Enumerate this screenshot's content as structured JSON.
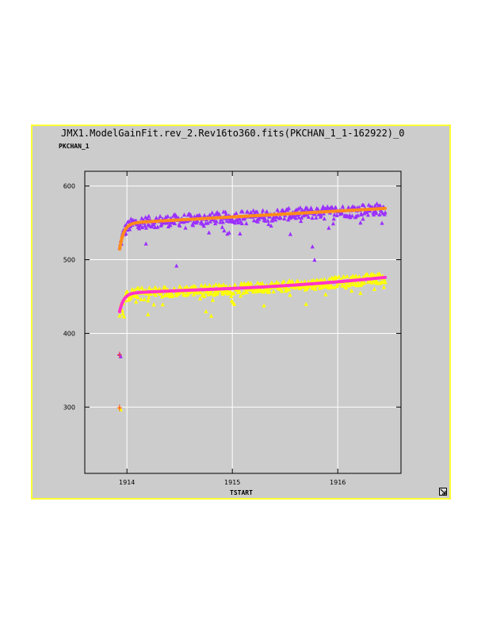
{
  "window": {
    "title": "JMX1.ModelGainFit.rev_2.Rev16to360.fits(PKCHAN_1_1-162922)_0"
  },
  "chart_data": {
    "type": "scatter",
    "title": "JMX1.ModelGainFit.rev_2.Rev16to360.fits(PKCHAN_1_1-162922)_0",
    "xlabel": "TSTART",
    "ylabel": "PKCHAN_1",
    "xlim": [
      1913.6,
      1916.6
    ],
    "ylim": [
      210,
      620
    ],
    "xticks": [
      1914,
      1915,
      1916
    ],
    "yticks": [
      300,
      400,
      500,
      600
    ],
    "grid": true,
    "series": [
      {
        "kind": "points",
        "color": "#9b30ff",
        "marker": "triangle",
        "model": {
          "base": 550,
          "slope": 8,
          "amp": 35,
          "tau": 0.04,
          "t0": 1913.93
        },
        "x_range": [
          1913.93,
          1916.45
        ],
        "spread": 8,
        "outliers": [
          {
            "x": 1914.47,
            "y": 492
          },
          {
            "x": 1915.78,
            "y": 500
          },
          {
            "x": 1914.18,
            "y": 522
          },
          {
            "x": 1915.76,
            "y": 518
          },
          {
            "x": 1914.97,
            "y": 537
          },
          {
            "x": 1915.55,
            "y": 535
          },
          {
            "x": 1913.93,
            "y": 372
          },
          {
            "x": 1913.94,
            "y": 369
          }
        ]
      },
      {
        "kind": "line",
        "color": "#ff8c1a",
        "model": {
          "base": 550,
          "slope": 8,
          "amp": 35,
          "tau": 0.04,
          "t0": 1913.93
        },
        "x_range": [
          1913.93,
          1916.45
        ]
      },
      {
        "kind": "points",
        "color": "#ffff00",
        "marker": "triangle",
        "model": {
          "base": 455,
          "slope": 6,
          "amp": 25,
          "tau": 0.04,
          "t0": 1913.93,
          "quad": 3
        },
        "x_range": [
          1913.93,
          1916.45
        ],
        "spread": 7,
        "outliers": [
          {
            "x": 1914.2,
            "y": 426
          },
          {
            "x": 1914.75,
            "y": 430
          },
          {
            "x": 1914.8,
            "y": 424
          },
          {
            "x": 1915.3,
            "y": 438
          },
          {
            "x": 1915.7,
            "y": 440
          },
          {
            "x": 1913.93,
            "y": 300
          },
          {
            "x": 1913.94,
            "y": 297
          }
        ]
      },
      {
        "kind": "line",
        "color": "#ff33cc",
        "model": {
          "base": 455,
          "slope": 6,
          "amp": 25,
          "tau": 0.04,
          "t0": 1913.93,
          "quad": 3
        },
        "x_range": [
          1913.93,
          1916.45
        ]
      },
      {
        "kind": "cross",
        "color": "#ff3333",
        "points": [
          {
            "x": 1913.93,
            "y": 371
          },
          {
            "x": 1913.93,
            "y": 299
          }
        ]
      }
    ]
  }
}
